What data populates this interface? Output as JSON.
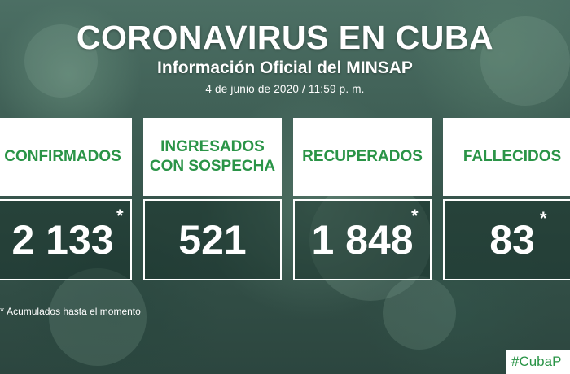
{
  "header": {
    "title": "CORONAVIRUS EN CUBA",
    "subtitle": "Información Oficial del MINSAP",
    "date": "4 de junio de 2020 / 11:59 p. m."
  },
  "stats": [
    {
      "label": "CONFIRMADOS",
      "value": "2 133",
      "asterisk": "*"
    },
    {
      "label": "INGRESADOS\nCON SOSPECHA",
      "value": "521",
      "asterisk": ""
    },
    {
      "label": "RECUPERADOS",
      "value": "1 848",
      "asterisk": "*"
    },
    {
      "label": "FALLECIDOS",
      "value": "83",
      "asterisk": "*"
    }
  ],
  "footnote": {
    "marker": "*",
    "text": "Acumulados hasta el momento"
  },
  "hashtag": "#CubaP",
  "colors": {
    "accent_green": "#2a9447",
    "background": "#3d5a52",
    "text": "#ffffff"
  }
}
